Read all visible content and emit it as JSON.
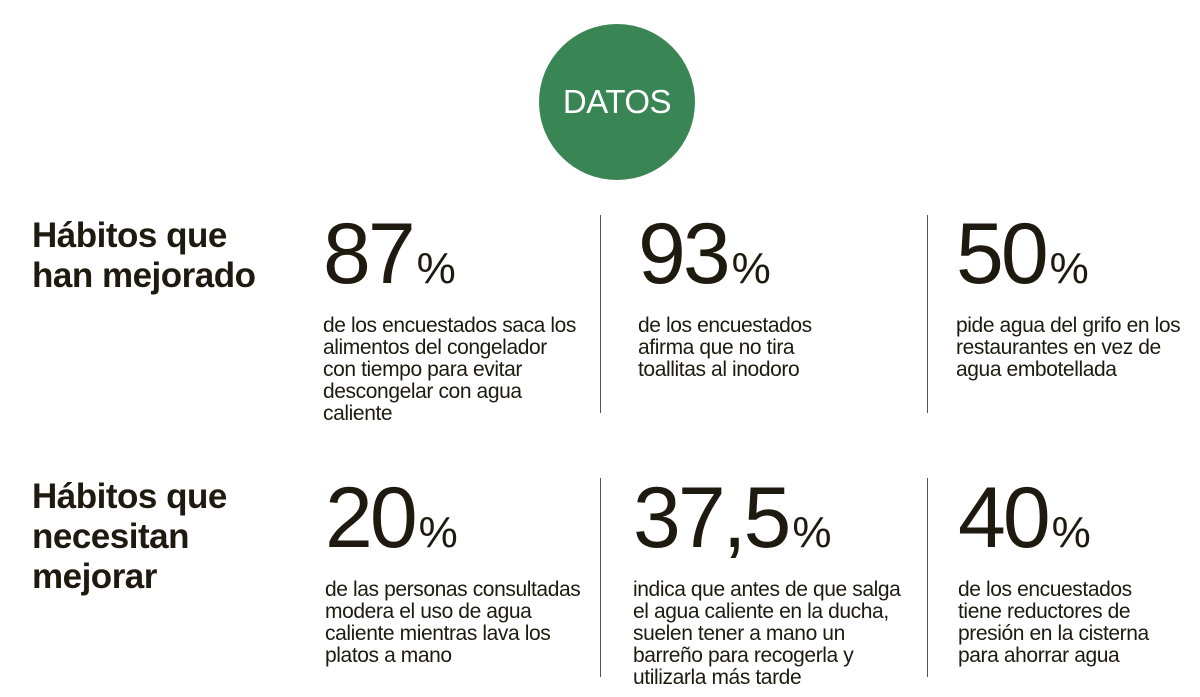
{
  "badge": "DATOS",
  "sections": [
    {
      "heading": [
        "Hábitos que",
        "han mejorado"
      ],
      "stats": [
        {
          "value": "87",
          "unit": "%",
          "text": "de los encuestados saca los alimentos del congelador con tiempo para evitar descongelar con agua caliente"
        },
        {
          "value": "93",
          "unit": "%",
          "text": "de los encuestados afirma que no tira toallitas al inodoro"
        },
        {
          "value": "50",
          "unit": "%",
          "text": "pide agua del grifo en los restaurantes en vez de agua embotellada"
        }
      ]
    },
    {
      "heading": [
        "Hábitos que",
        "necesitan",
        "mejorar"
      ],
      "stats": [
        {
          "value": "20",
          "unit": "%",
          "text": "de las personas consultadas modera el uso de agua caliente mientras lava los platos a mano"
        },
        {
          "value": "37,5",
          "unit": "%",
          "text": "indica que antes de que salga el agua caliente en la ducha, suelen tener a mano un barreño para recogerla y utilizarla más tarde"
        },
        {
          "value": "40",
          "unit": "%",
          "text": "de los encuestados tiene reductores de presión en la cisterna para ahorrar agua"
        }
      ]
    }
  ],
  "colors": {
    "badge": "#3a8554",
    "text": "#1e1a10"
  }
}
